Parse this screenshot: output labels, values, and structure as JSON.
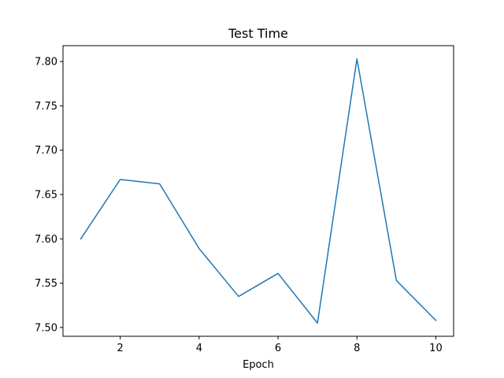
{
  "chart_data": {
    "type": "line",
    "title": "Test Time",
    "xlabel": "Epoch",
    "ylabel": "",
    "x": [
      1,
      2,
      3,
      4,
      5,
      6,
      7,
      8,
      9,
      10
    ],
    "series": [
      {
        "values": [
          7.6,
          7.667,
          7.662,
          7.589,
          7.535,
          7.561,
          7.505,
          7.803,
          7.553,
          7.508
        ],
        "color": "#1f77b4"
      }
    ],
    "xlim": [
      0.55,
      10.45
    ],
    "ylim": [
      7.4901,
      7.8179
    ],
    "xticks": [
      2,
      4,
      6,
      8,
      10
    ],
    "xtick_labels": [
      "2",
      "4",
      "6",
      "8",
      "10"
    ],
    "yticks": [
      7.5,
      7.55,
      7.6,
      7.65,
      7.7,
      7.75,
      7.8
    ],
    "ytick_labels": [
      "7.50",
      "7.55",
      "7.60",
      "7.65",
      "7.70",
      "7.75",
      "7.80"
    ],
    "grid": false,
    "legend": "none"
  }
}
